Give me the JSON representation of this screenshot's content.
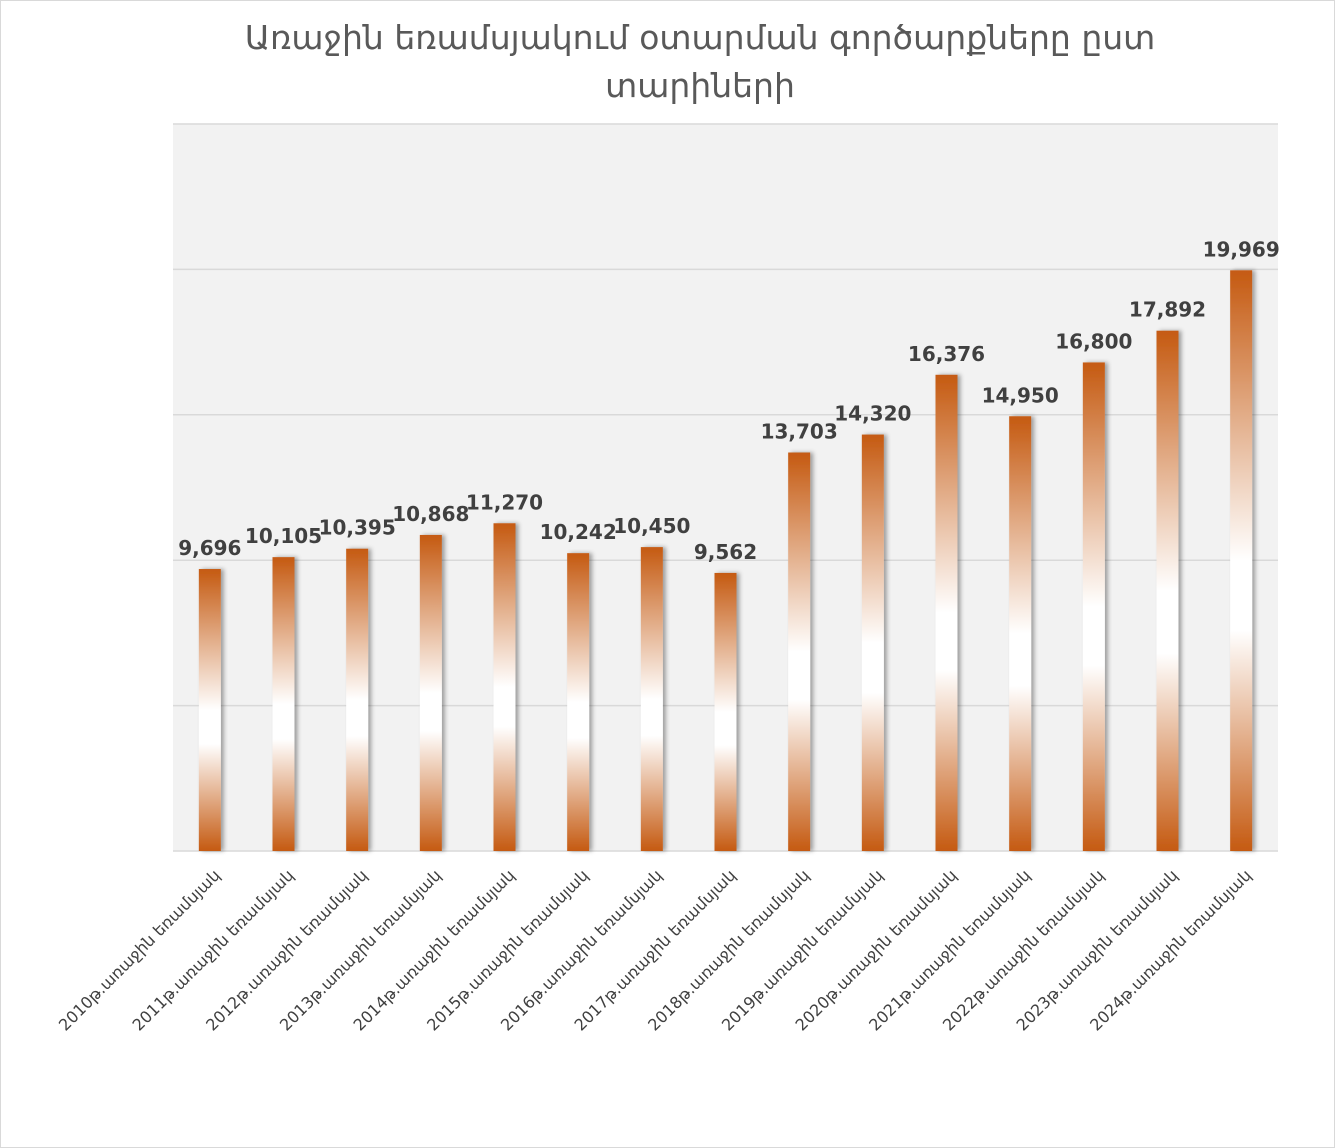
{
  "chart_data": {
    "type": "bar",
    "title": "Առաջին եռամսյակում օտարման գործարքները ըստ տարիների",
    "categories": [
      "2010թ.առաջին եռամսյակ",
      "2011թ.առաջին եռամսյակ",
      "2012թ.առաջին եռամսյակ",
      "2013թ.առաջին եռամսյակ",
      "2014թ.առաջին եռամսյակ",
      "2015թ.առաջին եռամսյակ",
      "2016թ.առաջին եռամսյակ",
      "2017թ.առաջին եռամսյակ",
      "2018թ.առաջին եռամսյակ",
      "2019թ.առաջին եռամսյակ",
      "2020թ.առաջին եռամսյակ",
      "2021թ.առաջին եռամսյակ",
      "2022թ.առաջին եռամսյակ",
      "2023թ.առաջին եռամսյակ",
      "2024թ.առաջին եռամսյակ"
    ],
    "values": [
      9696,
      10105,
      10395,
      10868,
      11270,
      10242,
      10450,
      9562,
      13703,
      14320,
      16376,
      14950,
      16800,
      17892,
      19969
    ],
    "value_labels": [
      "9,696",
      "10,105",
      "10,395",
      "10,868",
      "11,270",
      "10,242",
      "10,450",
      "9,562",
      "13,703",
      "14,320",
      "16,376",
      "14,950",
      "16,800",
      "17,892",
      "19,969"
    ],
    "color": "#c55a11",
    "ylim": [
      0,
      25000
    ],
    "yticks": [
      0,
      5000,
      10000,
      15000,
      20000,
      25000
    ],
    "grid": true
  }
}
